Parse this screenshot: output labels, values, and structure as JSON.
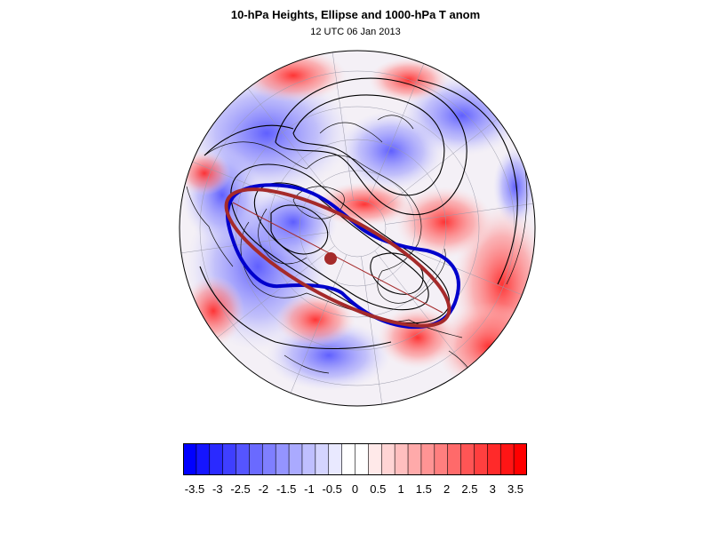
{
  "title": "10-hPa Heights, Ellipse and 1000-hPa T anom",
  "subtitle": "12 UTC 06 Jan 2013",
  "colors": {
    "ellipse": "#a52a2a",
    "polar_vortex_contour": "#0000cc",
    "height_contours": "#000000",
    "coastlines": "#111111",
    "gridlines": "#9a9aaa"
  },
  "colorbar": {
    "labels": [
      "-3.5",
      "-3",
      "-2.5",
      "-2",
      "-1.5",
      "-1",
      "-0.5",
      "0",
      "0.5",
      "1",
      "1.5",
      "2",
      "2.5",
      "3",
      "3.5"
    ],
    "colors": [
      "#0000ff",
      "#1515ff",
      "#2a2aff",
      "#3f3fff",
      "#5555ff",
      "#6a6aff",
      "#7f7fff",
      "#9494ff",
      "#aaaaff",
      "#bfbfff",
      "#d4d4ff",
      "#e9e9ff",
      "#ffffff",
      "#ffffff",
      "#ffe9e9",
      "#ffd4d4",
      "#ffbfbf",
      "#ffaaaa",
      "#ff9494",
      "#ff7f7f",
      "#ff6a6a",
      "#ff5555",
      "#ff3f3f",
      "#ff2a2a",
      "#ff1515",
      "#ff0000"
    ]
  }
}
